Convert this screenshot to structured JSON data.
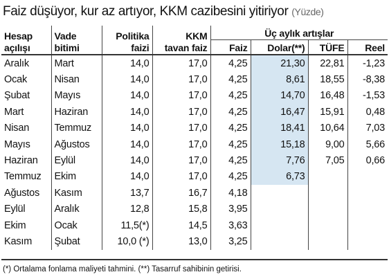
{
  "header": {
    "title": "Faiz düşüyor, kur az artıyor, KKM cazibesini yitiriyor",
    "unit": "(Yüzde)"
  },
  "table": {
    "columns": [
      [
        "Hesap",
        "açılışı"
      ],
      [
        "Vade",
        "bitimi"
      ],
      [
        "Politika",
        "faizi"
      ],
      [
        "KKM",
        "tavan faiz"
      ]
    ],
    "group": "Üç aylık artışlar",
    "subcolumns": [
      "Faiz",
      "Dolar(**)",
      "TÜFE",
      "Reel"
    ],
    "rows": [
      [
        "Aralık",
        "Mart",
        "14,0",
        "17,0",
        "4,25",
        "21,30",
        "22,81",
        "-1,23"
      ],
      [
        "Ocak",
        "Nisan",
        "14,0",
        "17,0",
        "4,25",
        "8,61",
        "18,55",
        "-8,38"
      ],
      [
        "Şubat",
        "Mayıs",
        "14,0",
        "17,0",
        "4,25",
        "14,70",
        "16,48",
        "-1,53"
      ],
      [
        "Mart",
        "Haziran",
        "14,0",
        "17,0",
        "4,25",
        "16,47",
        "15,91",
        "0,48"
      ],
      [
        "Nisan",
        "Temmuz",
        "14,0",
        "17,0",
        "4,25",
        "18,41",
        "10,64",
        "7,03"
      ],
      [
        "Mayıs",
        "Ağustos",
        "14,0",
        "17,0",
        "4,25",
        "15,18",
        "9,00",
        "5,66"
      ],
      [
        "Haziran",
        "Eylül",
        "14,0",
        "17,0",
        "4,25",
        "7,76",
        "7,05",
        "0,66"
      ],
      [
        "Temmuz",
        "Ekim",
        "14,0",
        "17,0",
        "4,25",
        "6,73"
      ],
      [
        "Ağustos",
        "Kasım",
        "13,7",
        "16,7",
        "4,18"
      ],
      [
        "Eylül",
        "Aralık",
        "12,8",
        "15,8",
        "3,95"
      ],
      [
        "Ekim",
        "Ocak",
        "11,5(*)",
        "14,5",
        "3,63"
      ],
      [
        "Kasım",
        "Şubat",
        "10,0 (*)",
        "13,0",
        "3,25"
      ]
    ]
  },
  "footnote": "(*) Ortalama fonlama maliyeti tahmini. (**) Tasarruf sahibinin getirisi."
}
